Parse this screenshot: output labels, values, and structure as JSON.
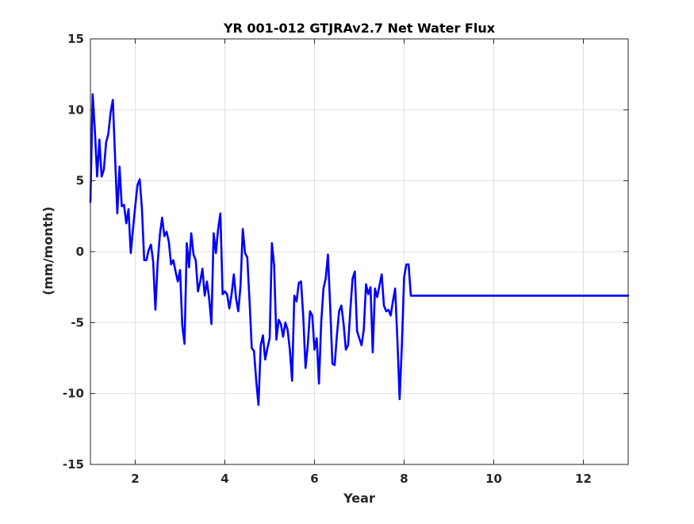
{
  "chart_data": {
    "type": "line",
    "title": "YR 001-012 GTJRAv2.7 Net Water Flux",
    "xlabel": "Year",
    "ylabel": "(mm/month)",
    "xlim": [
      1,
      13
    ],
    "ylim": [
      -15,
      15
    ],
    "xticks": [
      2,
      4,
      6,
      8,
      10,
      12
    ],
    "xtick_labels": [
      "2",
      "4",
      "6",
      "8",
      "10",
      "12"
    ],
    "yticks": [
      -15,
      -10,
      -5,
      0,
      5,
      10,
      15
    ],
    "ytick_labels": [
      "-15",
      "-10",
      "-5",
      "0",
      "5",
      "10",
      "15"
    ],
    "grid": true,
    "legend": "none",
    "line_color": "#0000ff",
    "series": [
      {
        "x": [
          1.0,
          1.05,
          1.1,
          1.15,
          1.2,
          1.25,
          1.3,
          1.35,
          1.4,
          1.45,
          1.5,
          1.55,
          1.6,
          1.65,
          1.7,
          1.75,
          1.8,
          1.85,
          1.9,
          1.95,
          2.0,
          2.05,
          2.1,
          2.15,
          2.2,
          2.25,
          2.3,
          2.35,
          2.4,
          2.45,
          2.5,
          2.55,
          2.6,
          2.65,
          2.7,
          2.75,
          2.8,
          2.85,
          2.9,
          2.95,
          3.0,
          3.05,
          3.1,
          3.15,
          3.2,
          3.25,
          3.3,
          3.35,
          3.4,
          3.45,
          3.5,
          3.55,
          3.6,
          3.65,
          3.7,
          3.75,
          3.8,
          3.85,
          3.9,
          3.95,
          4.0,
          4.05,
          4.1,
          4.15,
          4.2,
          4.25,
          4.3,
          4.35,
          4.4,
          4.45,
          4.5,
          4.55,
          4.6,
          4.65,
          4.7,
          4.75,
          4.8,
          4.85,
          4.9,
          4.95,
          5.0,
          5.05,
          5.1,
          5.15,
          5.2,
          5.25,
          5.3,
          5.35,
          5.4,
          5.45,
          5.5,
          5.55,
          5.6,
          5.65,
          5.7,
          5.75,
          5.8,
          5.85,
          5.9,
          5.95,
          6.0,
          6.05,
          6.1,
          6.15,
          6.2,
          6.25,
          6.3,
          6.35,
          6.4,
          6.45,
          6.5,
          6.55,
          6.6,
          6.65,
          6.7,
          6.75,
          6.8,
          6.85,
          6.9,
          6.95,
          7.0,
          7.05,
          7.1,
          7.15,
          7.2,
          7.25,
          7.3,
          7.35,
          7.4,
          7.45,
          7.5,
          7.55,
          7.6,
          7.65,
          7.7,
          7.75,
          7.8,
          7.85,
          7.9,
          7.95,
          8.0,
          8.05,
          8.1,
          8.15,
          8.2,
          8.25,
          8.3,
          8.35,
          8.4,
          8.45,
          8.5,
          8.55,
          8.6,
          8.65,
          8.7,
          8.75,
          8.8,
          8.85,
          8.9,
          8.95,
          9.0,
          9.05,
          9.1,
          9.15,
          9.2,
          9.25,
          9.3,
          9.35,
          9.4,
          9.45,
          9.5,
          9.55,
          9.6,
          9.65,
          9.7,
          9.75,
          9.8,
          9.85,
          9.9,
          9.95,
          10.0,
          10.05,
          10.1,
          10.15,
          10.2,
          10.25,
          10.3,
          10.35,
          10.4,
          10.45,
          10.5,
          10.55,
          10.6,
          10.65,
          10.7,
          10.75,
          10.8,
          10.85,
          10.9,
          10.95,
          11.0,
          11.05,
          11.1,
          11.15,
          11.2,
          11.25,
          11.3,
          11.35,
          11.4,
          11.45,
          11.5,
          11.55,
          11.6,
          11.65,
          11.7,
          11.75,
          11.8,
          11.85,
          11.9,
          11.95,
          12.0,
          12.05,
          12.1,
          12.15,
          12.2,
          12.25,
          12.3,
          12.35,
          12.4,
          12.45,
          12.5,
          12.55,
          12.6,
          12.65,
          12.7,
          12.75,
          12.8,
          12.85,
          12.9,
          12.95,
          13.0
        ],
        "y": [
          3.5,
          11.1,
          8.5,
          5.3,
          7.9,
          5.3,
          5.8,
          7.7,
          8.3,
          9.8,
          10.7,
          6.7,
          2.7,
          6.0,
          3.2,
          3.3,
          2.0,
          3.0,
          -0.1,
          1.6,
          3.2,
          4.7,
          5.1,
          3.0,
          -0.6,
          -0.6,
          0.1,
          0.5,
          -0.7,
          -4.1,
          -0.8,
          1.2,
          2.4,
          1.1,
          1.4,
          0.7,
          -0.9,
          -0.6,
          -1.4,
          -2.1,
          -1.3,
          -5.2,
          -6.5,
          0.6,
          -1.1,
          1.3,
          -0.2,
          -0.6,
          -2.8,
          -2.1,
          -1.2,
          -3.1,
          -2.1,
          -3.3,
          -5.1,
          1.3,
          -0.1,
          1.6,
          2.7,
          -3.0,
          -2.8,
          -3.0,
          -4.0,
          -3.0,
          -1.6,
          -3.3,
          -4.2,
          -2.4,
          1.6,
          -0.1,
          -0.4,
          -3.4,
          -6.8,
          -7.0,
          -9.1,
          -10.8,
          -6.6,
          -5.9,
          -7.6,
          -6.8,
          -6.1,
          0.6,
          -1.0,
          -6.2,
          -4.8,
          -5.1,
          -6.0,
          -5.0,
          -5.5,
          -6.9,
          -9.1,
          -3.1,
          -3.5,
          -2.2,
          -2.1,
          -4.6,
          -8.2,
          -6.6,
          -4.2,
          -4.5,
          -6.9,
          -6.1,
          -9.3,
          -5.0,
          -2.6,
          -1.9,
          -0.2,
          -3.8,
          -7.9,
          -8.0,
          -5.9,
          -4.2,
          -3.8,
          -5.1,
          -6.9,
          -6.6,
          -4.1,
          -1.9,
          -1.4,
          -5.6,
          -6.1,
          -6.6,
          -5.5,
          -2.3,
          -3.0,
          -2.5,
          -7.1,
          -2.6,
          -3.2,
          -2.4,
          -1.6,
          -3.8,
          -4.2,
          -4.1,
          -4.5,
          -3.5,
          -2.6,
          -6.2,
          -10.4,
          -6.6,
          -1.8,
          -0.9,
          -0.9,
          -3.1,
          -3.1,
          -3.1,
          -3.1,
          -3.1,
          -3.1,
          -3.1,
          -3.1,
          -3.1,
          -3.1,
          -3.1,
          -3.1,
          -3.1,
          -3.1,
          -3.1,
          -3.1,
          -3.1,
          -3.1,
          -3.1,
          -3.1,
          -3.1,
          -3.1,
          -3.1,
          -3.1,
          -3.1,
          -3.1,
          -3.1,
          -3.1,
          -3.1,
          -3.1,
          -3.1,
          -3.1,
          -3.1,
          -3.1,
          -3.1,
          -3.1,
          -3.1,
          -3.1,
          -3.1,
          -3.1,
          -3.1,
          -3.1,
          -3.1,
          -3.1,
          -3.1,
          -3.1,
          -3.1,
          -3.1,
          -3.1,
          -3.1,
          -3.1,
          -3.1,
          -3.1,
          -3.1,
          -3.1,
          -3.1,
          -3.1,
          -3.1,
          -3.1,
          -3.1,
          -3.1,
          -3.1,
          -3.1,
          -3.1,
          -3.1,
          -3.1,
          -3.1,
          -3.1,
          -3.1,
          -3.1,
          -3.1,
          -3.1,
          -3.1,
          -3.1,
          -3.1,
          -3.1,
          -3.1,
          -3.1,
          -3.1,
          -3.1,
          -3.1,
          -3.1,
          -3.1,
          -3.1,
          -3.1,
          -3.1,
          -3.1,
          -3.1,
          -3.1,
          -3.1,
          -3.1,
          -3.1,
          -3.1,
          -3.1,
          -3.1,
          -3.1,
          -3.1,
          -3.1
        ]
      }
    ]
  }
}
